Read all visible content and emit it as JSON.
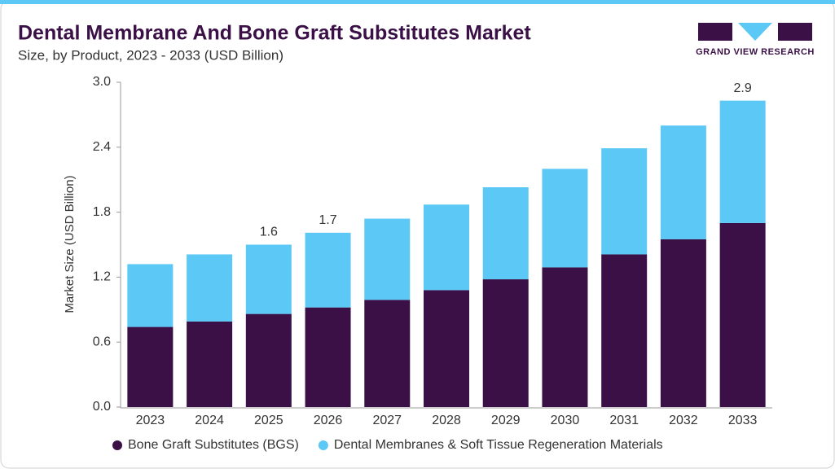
{
  "brand": "GRAND VIEW RESEARCH",
  "chart_data": {
    "type": "stacked-bar",
    "title": "Dental Membrane And Bone Graft Substitutes Market",
    "subtitle": "Size, by Product, 2023 - 2033 (USD Billion)",
    "y_label": "Market Size (USD Billion)",
    "categories": [
      "2023",
      "2024",
      "2025",
      "2026",
      "2027",
      "2028",
      "2029",
      "2030",
      "2031",
      "2032",
      "2033"
    ],
    "series": [
      {
        "name": "Bone Graft Substitutes (BGS)",
        "color": "#3a1046",
        "values": [
          0.74,
          0.79,
          0.86,
          0.92,
          0.99,
          1.08,
          1.18,
          1.29,
          1.41,
          1.55,
          1.7
        ]
      },
      {
        "name": "Dental Membranes & Soft Tissue Regeneration Materials",
        "color": "#5bc8f5",
        "values": [
          0.58,
          0.62,
          0.64,
          0.69,
          0.75,
          0.79,
          0.85,
          0.91,
          0.98,
          1.05,
          1.13
        ]
      }
    ],
    "annotations": [
      {
        "category": "2025",
        "label": "1.6"
      },
      {
        "category": "2026",
        "label": "1.7"
      },
      {
        "category": "2033",
        "label": "2.9"
      }
    ],
    "ylim": [
      0,
      3
    ],
    "yticks": [
      {
        "value": 0,
        "label": "0.0"
      },
      0.6,
      1.2,
      1.8,
      2.4,
      {
        "value": 3,
        "label": "3.0"
      }
    ],
    "grid": false
  }
}
